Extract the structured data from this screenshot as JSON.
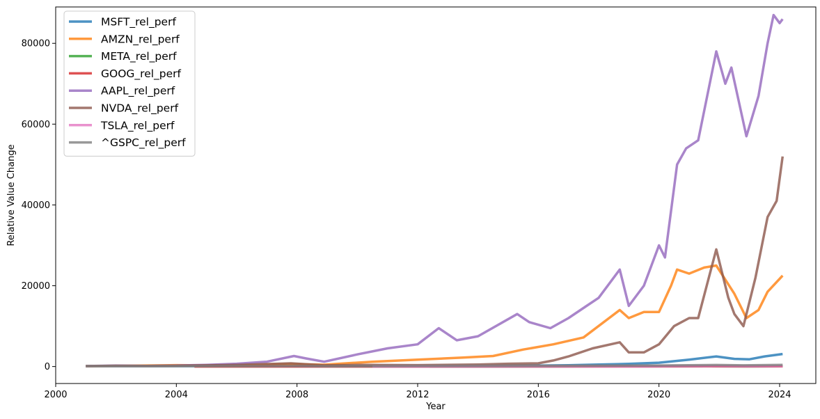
{
  "chart_data": {
    "type": "line",
    "title": "",
    "xlabel": "Year",
    "ylabel": "Relative Value Change",
    "xlim": [
      2000.0,
      2025.2
    ],
    "ylim": [
      -4200,
      89000
    ],
    "x_ticks": [
      2000,
      2004,
      2008,
      2012,
      2016,
      2020,
      2024
    ],
    "y_ticks": [
      0,
      20000,
      40000,
      60000,
      80000
    ],
    "grid": false,
    "legend_position": "upper-left",
    "series": [
      {
        "name": "MSFT_rel_perf",
        "color": "#1f77b4",
        "x": [
          2001.0,
          2004.0,
          2008.0,
          2012.0,
          2014.0,
          2016.0,
          2017.0,
          2018.0,
          2019.0,
          2020.0,
          2021.0,
          2021.9,
          2022.5,
          2023.0,
          2023.5,
          2024.1
        ],
        "y": [
          100,
          100,
          120,
          110,
          170,
          250,
          330,
          480,
          650,
          950,
          1700,
          2500,
          1900,
          1800,
          2500,
          3100
        ]
      },
      {
        "name": "AMZN_rel_perf",
        "color": "#ff7f0e",
        "x": [
          2001.0,
          2002.0,
          2004.0,
          2006.0,
          2007.8,
          2008.9,
          2010.5,
          2012.0,
          2013.5,
          2014.5,
          2015.5,
          2016.5,
          2017.5,
          2018.7,
          2019.0,
          2019.5,
          2020.0,
          2020.4,
          2020.6,
          2021.0,
          2021.5,
          2021.9,
          2022.5,
          2022.9,
          2023.3,
          2023.6,
          2024.1
        ],
        "y": [
          100,
          150,
          350,
          250,
          600,
          450,
          1200,
          1700,
          2200,
          2600,
          4200,
          5500,
          7200,
          14000,
          12000,
          13500,
          13500,
          20000,
          24000,
          23000,
          24500,
          25000,
          18000,
          12000,
          14000,
          18500,
          22500
        ]
      },
      {
        "name": "META_rel_perf",
        "color": "#2ca02c",
        "x": [
          2012.4,
          2014.0,
          2016.0,
          2018.0,
          2020.0,
          2021.7,
          2022.9,
          2024.1
        ],
        "y": [
          0,
          10,
          20,
          30,
          40,
          60,
          20,
          70
        ]
      },
      {
        "name": "GOOG_rel_perf",
        "color": "#d62728",
        "x": [
          2004.6,
          2008.0,
          2012.0,
          2016.0,
          2020.0,
          2021.9,
          2022.9,
          2024.1
        ],
        "y": [
          0,
          10,
          10,
          20,
          40,
          70,
          40,
          70
        ]
      },
      {
        "name": "AAPL_rel_perf",
        "color": "#9467bd",
        "x": [
          2001.0,
          2002.0,
          2003.0,
          2004.0,
          2005.0,
          2006.0,
          2007.0,
          2007.9,
          2008.3,
          2008.9,
          2010.0,
          2011.0,
          2012.0,
          2012.7,
          2013.3,
          2014.0,
          2015.3,
          2015.7,
          2016.4,
          2017.0,
          2017.6,
          2018.0,
          2018.7,
          2019.0,
          2019.5,
          2020.0,
          2020.2,
          2020.6,
          2020.9,
          2021.3,
          2021.9,
          2022.2,
          2022.4,
          2022.9,
          2023.3,
          2023.6,
          2023.8,
          2024.0,
          2024.1
        ],
        "y": [
          100,
          250,
          150,
          250,
          400,
          700,
          1200,
          2600,
          2000,
          1200,
          3000,
          4500,
          5500,
          9500,
          6500,
          7500,
          13000,
          11000,
          9500,
          12000,
          15000,
          17000,
          24000,
          15000,
          20000,
          30000,
          27000,
          50000,
          54000,
          56000,
          78000,
          70000,
          74000,
          57000,
          67000,
          80000,
          87000,
          85000,
          86000
        ]
      },
      {
        "name": "NVDA_rel_perf",
        "color": "#8c564b",
        "x": [
          2001.0,
          2002.0,
          2003.0,
          2004.0,
          2006.0,
          2007.8,
          2008.9,
          2010.0,
          2012.0,
          2014.0,
          2015.0,
          2016.0,
          2016.5,
          2017.0,
          2017.8,
          2018.7,
          2019.0,
          2019.5,
          2020.0,
          2020.5,
          2021.0,
          2021.3,
          2021.9,
          2022.3,
          2022.5,
          2022.8,
          2023.2,
          2023.6,
          2023.9,
          2024.1
        ],
        "y": [
          100,
          200,
          150,
          200,
          400,
          800,
          300,
          400,
          350,
          500,
          700,
          800,
          1500,
          2500,
          4500,
          6000,
          3500,
          3500,
          5500,
          10000,
          12000,
          12000,
          29000,
          17000,
          13000,
          10000,
          22000,
          37000,
          41000,
          52000
        ]
      },
      {
        "name": "TSLA_rel_perf",
        "color": "#e377c2",
        "x": [
          2010.5,
          2013.5,
          2016.0,
          2019.5,
          2020.5,
          2021.9,
          2022.9,
          2024.1
        ],
        "y": [
          0,
          10,
          20,
          20,
          90,
          130,
          60,
          100
        ]
      },
      {
        "name": "^GSPC_rel_perf",
        "color": "#7f7f7f",
        "x": [
          2001.0,
          2003.0,
          2008.0,
          2009.2,
          2012.0,
          2016.0,
          2020.0,
          2021.9,
          2022.8,
          2024.1
        ],
        "y": [
          100,
          90,
          120,
          70,
          120,
          180,
          260,
          380,
          300,
          400
        ]
      }
    ]
  }
}
